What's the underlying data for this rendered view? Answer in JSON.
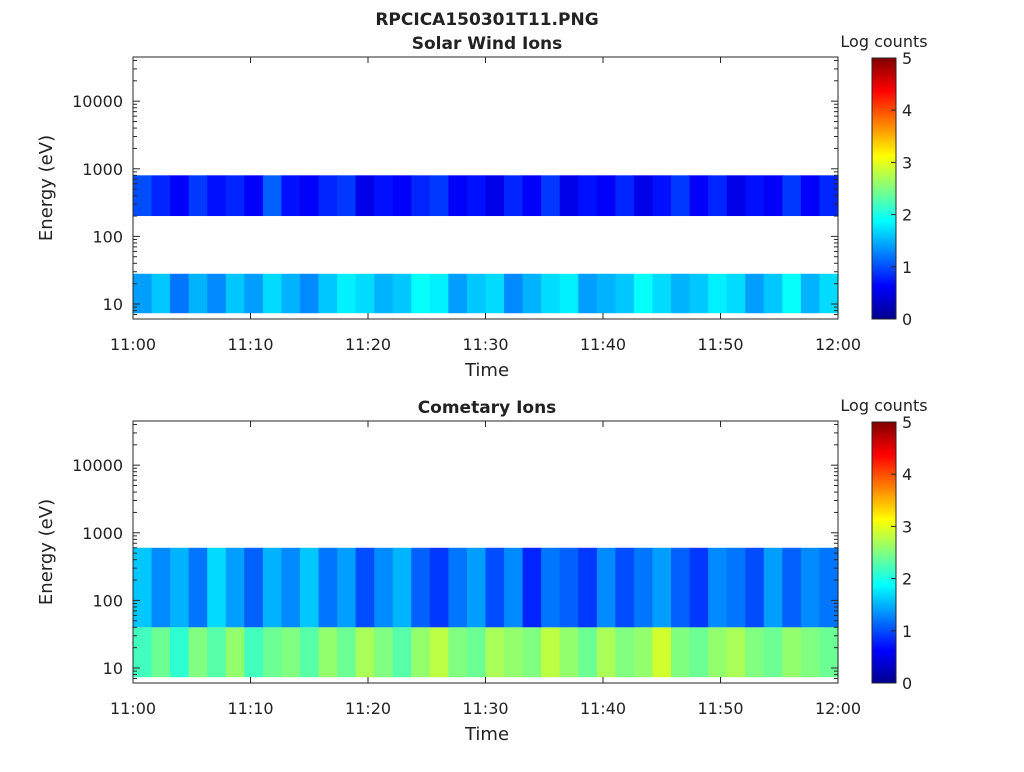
{
  "figure_title": "RPCICA150301T11.PNG",
  "colorbar": {
    "label": "Log counts",
    "ticks": [
      "0",
      "1",
      "2",
      "3",
      "4",
      "5"
    ],
    "range": [
      0,
      5
    ],
    "colormap": "jet"
  },
  "chart_data": [
    {
      "type": "heatmap",
      "title": "Solar Wind Ions",
      "xlabel": "Time",
      "ylabel": "Energy (eV)",
      "x_ticks": [
        "11:00",
        "11:10",
        "11:20",
        "11:30",
        "11:40",
        "11:50",
        "12:00"
      ],
      "y_ticks": [
        "10",
        "100",
        "1000",
        "10000"
      ],
      "y_scale": "log",
      "ylim": [
        6,
        45000
      ],
      "x_range": [
        "11:00",
        "12:00"
      ],
      "bands": [
        {
          "energy_min": 7.3,
          "energy_max": 28,
          "log_counts": [
            1.4,
            1.6,
            1.2,
            1.5,
            1.3,
            1.6,
            1.4,
            1.7,
            1.5,
            1.3,
            1.6,
            1.8,
            1.7,
            1.5,
            1.6,
            1.9,
            1.8,
            1.4,
            1.6,
            1.7,
            1.3,
            1.5,
            1.7,
            1.8,
            1.4,
            1.5,
            1.6,
            1.9,
            1.7,
            1.5,
            1.6,
            1.8,
            1.7,
            1.4,
            1.6,
            1.9,
            1.5,
            1.7
          ]
        },
        {
          "energy_min": 200,
          "energy_max": 800,
          "log_counts": [
            1.0,
            0.8,
            0.6,
            0.9,
            0.7,
            0.8,
            0.6,
            1.1,
            0.7,
            0.6,
            0.8,
            0.9,
            0.5,
            0.7,
            0.6,
            0.8,
            0.9,
            0.6,
            0.7,
            0.5,
            0.8,
            0.6,
            0.9,
            0.5,
            0.7,
            0.6,
            0.8,
            0.5,
            0.7,
            0.9,
            0.6,
            0.8,
            0.5,
            0.7,
            0.6,
            0.9,
            0.6,
            0.8
          ]
        }
      ]
    },
    {
      "type": "heatmap",
      "title": "Cometary Ions",
      "xlabel": "Time",
      "ylabel": "Energy (eV)",
      "x_ticks": [
        "11:00",
        "11:10",
        "11:20",
        "11:30",
        "11:40",
        "11:50",
        "12:00"
      ],
      "y_ticks": [
        "10",
        "100",
        "1000",
        "10000"
      ],
      "y_scale": "log",
      "ylim": [
        6,
        45000
      ],
      "x_range": [
        "11:00",
        "12:00"
      ],
      "bands": [
        {
          "energy_min": 7.3,
          "energy_max": 40,
          "log_counts": [
            2.2,
            2.4,
            2.1,
            2.5,
            2.3,
            2.6,
            2.2,
            2.4,
            2.5,
            2.3,
            2.6,
            2.4,
            2.7,
            2.5,
            2.3,
            2.6,
            2.8,
            2.5,
            2.4,
            2.7,
            2.6,
            2.5,
            2.8,
            2.6,
            2.4,
            2.7,
            2.5,
            2.6,
            2.9,
            2.5,
            2.4,
            2.6,
            2.7,
            2.5,
            2.4,
            2.6,
            2.5,
            2.4
          ]
        },
        {
          "energy_min": 40,
          "energy_max": 600,
          "log_counts": [
            1.6,
            1.3,
            1.5,
            1.2,
            1.7,
            1.4,
            1.1,
            1.5,
            1.3,
            1.6,
            1.2,
            1.4,
            1.0,
            1.3,
            1.5,
            1.1,
            0.9,
            1.2,
            1.4,
            1.0,
            1.3,
            0.8,
            1.2,
            1.1,
            0.9,
            1.3,
            1.0,
            1.2,
            1.4,
            1.1,
            0.9,
            1.3,
            1.2,
            1.0,
            1.4,
            1.1,
            1.3,
            1.2
          ]
        }
      ]
    }
  ]
}
